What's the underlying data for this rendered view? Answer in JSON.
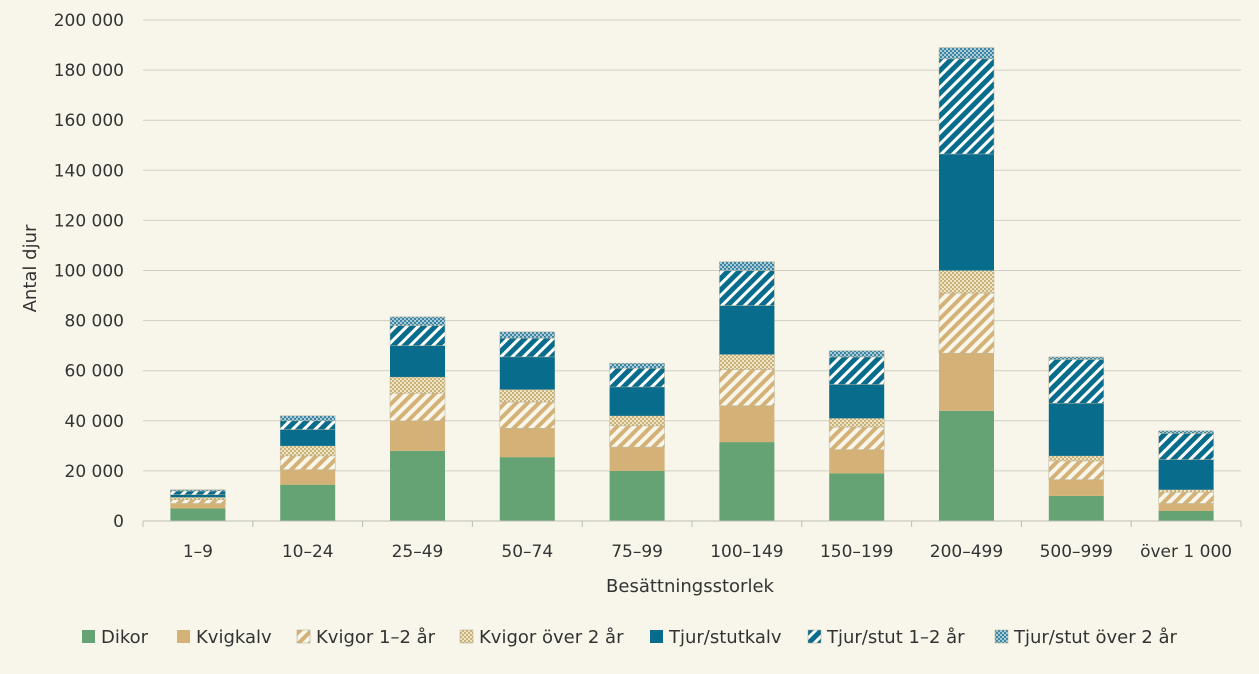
{
  "chart_data": {
    "type": "bar",
    "stacked": true,
    "xlabel": "Besättningsstorlek",
    "ylabel": "Antal djur",
    "ylim": [
      0,
      200000
    ],
    "yticks": [
      0,
      20000,
      40000,
      60000,
      80000,
      100000,
      120000,
      140000,
      160000,
      180000,
      200000
    ],
    "ytick_labels": [
      "0",
      "20 000",
      "40 000",
      "60 000",
      "80 000",
      "100 000",
      "120 000",
      "140 000",
      "160 000",
      "180 000",
      "200 000"
    ],
    "grid": "horizontal",
    "legend_position": "bottom",
    "categories": [
      "1–9",
      "10–24",
      "25–49",
      "50–74",
      "75–99",
      "100–149",
      "150–199",
      "200–499",
      "500–999",
      "över 1 000"
    ],
    "series": [
      {
        "name": "Dikor",
        "color": "#66a374",
        "pattern": "solid",
        "values": [
          5000,
          14500,
          28000,
          25500,
          20000,
          31500,
          19000,
          44000,
          10000,
          4000
        ]
      },
      {
        "name": "Kvigkalv",
        "color": "#d4b277",
        "pattern": "solid",
        "values": [
          2000,
          6000,
          12000,
          11500,
          9500,
          14500,
          9500,
          23000,
          6500,
          3000
        ]
      },
      {
        "name": "Kvigor 1–2 år",
        "color": "#d4b277",
        "pattern": "diagonal-hatch",
        "values": [
          1500,
          5500,
          11000,
          10500,
          8500,
          14500,
          9000,
          24000,
          7500,
          4500
        ]
      },
      {
        "name": "Kvigor över 2 år",
        "color": "#e3d3a6",
        "pattern": "dots",
        "values": [
          1000,
          4000,
          6500,
          5000,
          4000,
          6000,
          3500,
          9000,
          2000,
          1000
        ]
      },
      {
        "name": "Tjur/stutkalv",
        "color": "#086c8c",
        "pattern": "solid",
        "values": [
          1000,
          6500,
          12500,
          13000,
          11500,
          19500,
          13500,
          46500,
          21000,
          12000
        ]
      },
      {
        "name": "Tjur/stut 1–2 år",
        "color": "#086c8c",
        "pattern": "diagonal-hatch",
        "values": [
          1500,
          3500,
          8000,
          7500,
          7500,
          14000,
          11000,
          38000,
          17500,
          10500
        ]
      },
      {
        "name": "Tjur/stut över 2 år",
        "color": "#6aa1b9",
        "pattern": "dots",
        "values": [
          500,
          2000,
          3500,
          2500,
          2000,
          3500,
          2500,
          4500,
          1000,
          1000
        ]
      }
    ]
  }
}
